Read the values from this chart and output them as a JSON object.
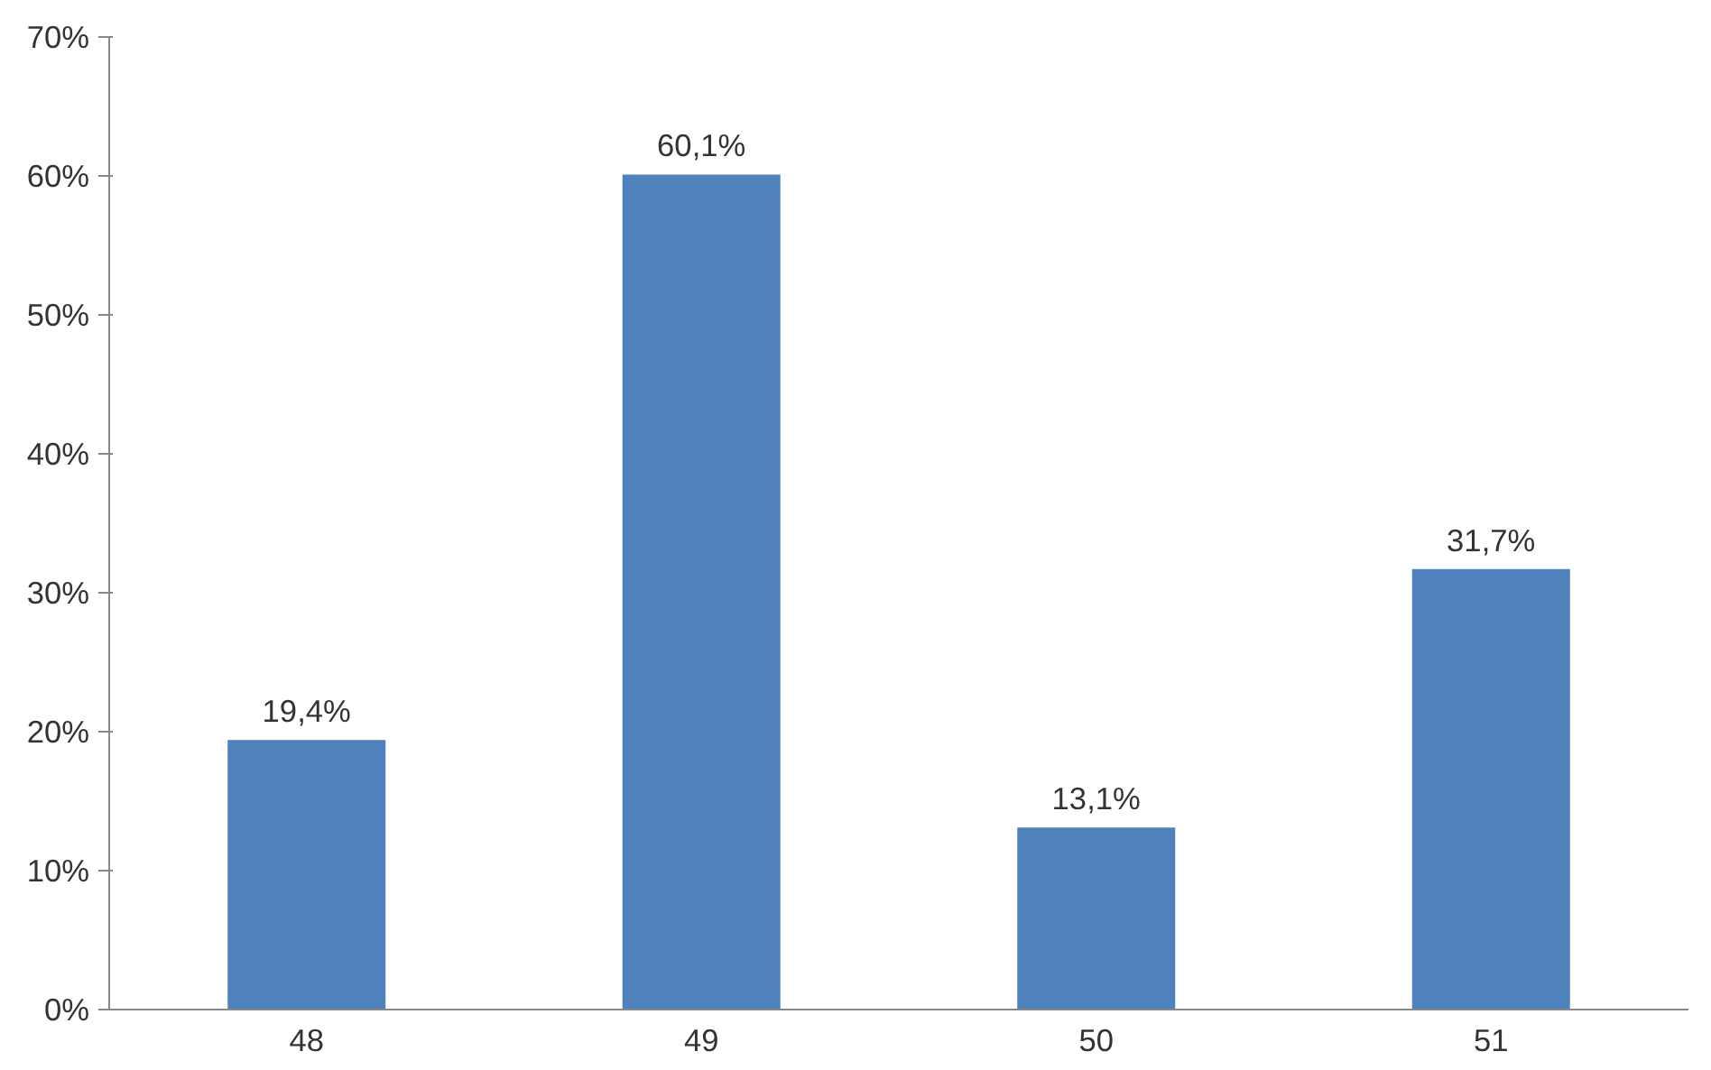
{
  "chart_data": {
    "type": "bar",
    "categories": [
      "48",
      "49",
      "50",
      "51"
    ],
    "values": [
      19.4,
      60.1,
      13.1,
      31.7
    ],
    "value_labels": [
      "19,4%",
      "60,1%",
      "13,1%",
      "31,7%"
    ],
    "color": "#4f81bd",
    "ylim": [
      0,
      70
    ],
    "yticks": [
      {
        "value": 0,
        "label": "0%"
      },
      {
        "value": 10,
        "label": "10%"
      },
      {
        "value": 20,
        "label": "20%"
      },
      {
        "value": 30,
        "label": "30%"
      },
      {
        "value": 40,
        "label": "40%"
      },
      {
        "value": 50,
        "label": "50%"
      },
      {
        "value": 60,
        "label": "60%"
      },
      {
        "value": 70,
        "label": "70%"
      }
    ],
    "grid": false
  }
}
